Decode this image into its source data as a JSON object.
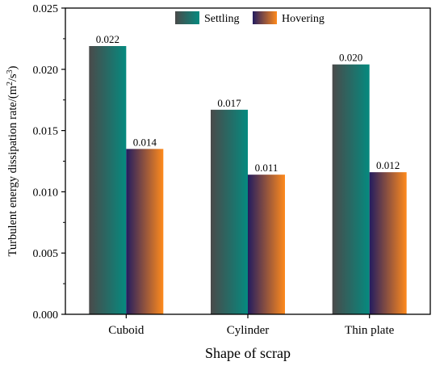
{
  "chart_data": {
    "type": "bar",
    "title": "",
    "xlabel": "Shape of scrap",
    "ylabel": "Turbulent energy dissipation rate/(m²/s³)",
    "ylabel_parts": {
      "before": "Turbulent energy dissipation rate/(m",
      "sup1": "2",
      "mid": "/s",
      "sup2": "3",
      "after": ")"
    },
    "categories": [
      "Cuboid",
      "Cylinder",
      "Thin plate"
    ],
    "series": [
      {
        "name": "Settling",
        "values": [
          0.0219,
          0.0167,
          0.0204
        ],
        "labels": [
          "0.022",
          "0.017",
          "0.020"
        ],
        "gradient": [
          "#4a4a4a",
          "#058a7f"
        ]
      },
      {
        "name": "Hovering",
        "values": [
          0.0135,
          0.0114,
          0.0116
        ],
        "labels": [
          "0.014",
          "0.011",
          "0.012"
        ],
        "gradient": [
          "#221c60",
          "#ff8a1c"
        ]
      }
    ],
    "ylim": [
      0,
      0.025
    ],
    "yticks": [
      "0.000",
      "0.005",
      "0.010",
      "0.015",
      "0.020",
      "0.025"
    ],
    "ytick_values": [
      0,
      0.005,
      0.01,
      0.015,
      0.02,
      0.025
    ],
    "legend_position": "top-center",
    "grid": false
  }
}
